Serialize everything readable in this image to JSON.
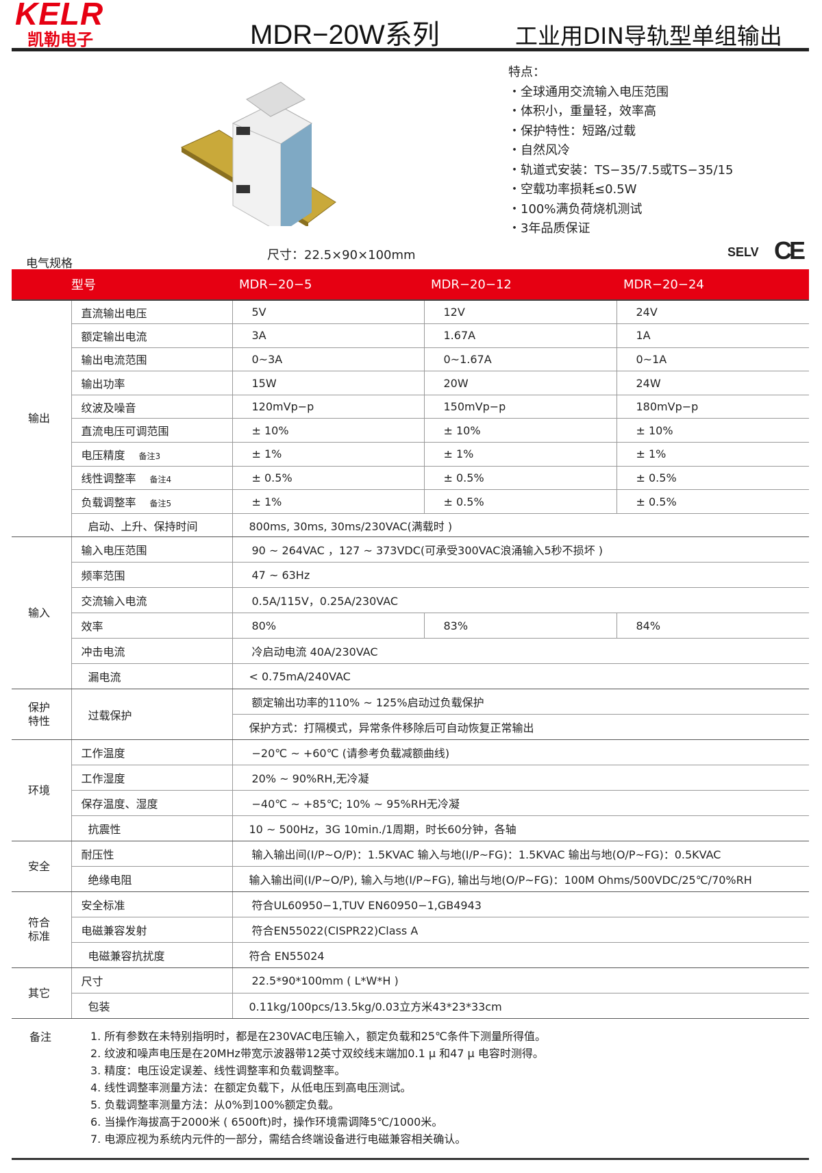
{
  "brand": {
    "logo_en": "KELR",
    "logo_cn": "凯勒电子",
    "primary": "#e60012"
  },
  "header": {
    "title": "MDR−20W系列",
    "subtitle": "工业用DIN导轨型单组输出"
  },
  "features": {
    "heading": "特点：",
    "items": [
      "全球通用交流输入电压范围",
      "体积小，重量轻，效率高",
      "保护特性：短路/过载",
      "自然风冷",
      "轨道式安装：TS−35/7.5或TS−35/15",
      "空载功率损耗≤0.5W",
      "100%满负荷烧机测试",
      "3年品质保证"
    ]
  },
  "dimensions": "尺寸：22.5×90×100mm",
  "section_label": "电气规格",
  "selv": "SELV",
  "ce": "CE",
  "table": {
    "header": [
      "型号",
      "MDR−20−5",
      "MDR−20−12",
      "MDR−20−24"
    ],
    "groups": [
      {
        "name": "输出",
        "rows": [
          {
            "label": "直流输出电压",
            "values": [
              "5V",
              "12V",
              "24V"
            ]
          },
          {
            "label": "额定输出电流",
            "values": [
              "3A",
              "1.67A",
              "1A"
            ]
          },
          {
            "label": "输出电流范围",
            "values": [
              "0~3A",
              "0~1.67A",
              "0~1A"
            ]
          },
          {
            "label": "输出功率",
            "values": [
              "15W",
              "20W",
              "24W"
            ]
          },
          {
            "label": "纹波及噪音",
            "values": [
              "120mVp−p",
              "150mVp−p",
              "180mVp−p"
            ]
          },
          {
            "label": "直流电压可调范围",
            "values": [
              "± 10%",
              "± 10%",
              "± 10%"
            ]
          },
          {
            "label": "电压精度",
            "note": "备注3",
            "values": [
              "± 1%",
              "± 1%",
              "± 1%"
            ]
          },
          {
            "label": "线性调整率",
            "note": "备注4",
            "values": [
              "± 0.5%",
              "± 0.5%",
              "± 0.5%"
            ]
          },
          {
            "label": "负载调整率",
            "note": "备注5",
            "values": [
              "± 1%",
              "± 0.5%",
              "± 0.5%"
            ]
          },
          {
            "label": "启动、上升、保持时间",
            "value": "800ms, 30ms, 30ms/230VAC(满载时 )"
          }
        ]
      },
      {
        "name": "输入",
        "rows": [
          {
            "label": "输入电压范围",
            "value": "90 ~ 264VAC  ，127 ~ 373VDC(可承受300VAC浪涌输入5秒不损坏 )"
          },
          {
            "label": "频率范围",
            "value": "47 ~ 63Hz"
          },
          {
            "label": "交流输入电流",
            "value": "0.5A/115V，0.25A/230VAC"
          },
          {
            "label": "效率",
            "values": [
              "80%",
              "83%",
              "84%"
            ]
          },
          {
            "label": "冲击电流",
            "value": "冷启动电流 40A/230VAC"
          },
          {
            "label": "漏电流",
            "value": "< 0.75mA/240VAC"
          }
        ]
      },
      {
        "name": "保护特性",
        "rows": [
          {
            "label": "过载保护",
            "values2": [
              "额定输出功率的110% ~ 125%启动过负载保护",
              "保护方式：打隔模式，异常条件移除后可自动恢复正常输出"
            ]
          }
        ]
      },
      {
        "name": "环境",
        "rows": [
          {
            "label": "工作温度",
            "value": "−20℃ ~ +60℃ (请参考负载减额曲线)"
          },
          {
            "label": "工作湿度",
            "value": "20% ~ 90%RH,无冷凝"
          },
          {
            "label": "保存温度、湿度",
            "value": "−40℃ ~ +85℃; 10% ~ 95%RH无冷凝"
          },
          {
            "label": "抗震性",
            "value": "10 ~ 500Hz，3G 10min./1周期，时长60分钟，各轴"
          }
        ]
      },
      {
        "name": "安全",
        "rows": [
          {
            "label": "耐压性",
            "value": "输入输出间(I/P~O/P)：1.5KVAC   输入与地(I/P~FG)：1.5KVAC   输出与地(O/P~FG)：0.5KVAC"
          },
          {
            "label": "绝缘电阻",
            "value": "输入输出间(I/P~O/P), 输入与地(I/P~FG), 输出与地(O/P~FG)：100M Ohms/500VDC/25℃/70%RH"
          }
        ]
      },
      {
        "name": "符合标准",
        "rows": [
          {
            "label": "安全标准",
            "value": "符合UL60950−1,TUV EN60950−1,GB4943"
          },
          {
            "label": "电磁兼容发射",
            "value": "符合EN55022(CISPR22)Class A"
          },
          {
            "label": "电磁兼容抗扰度",
            "value": "符合 EN55024"
          }
        ]
      },
      {
        "name": "其它",
        "rows": [
          {
            "label": "尺寸",
            "value": "22.5*90*100mm ( L*W*H )"
          },
          {
            "label": "包装",
            "value": "0.11kg/100pcs/13.5kg/0.03立方米43*23*33cm"
          }
        ]
      }
    ]
  },
  "notes": {
    "label": "备注",
    "items": [
      "1. 所有参数在未特别指明时，都是在230VAC电压输入，额定负载和25℃条件下测量所得值。",
      "2. 纹波和噪声电压是在20MHz带宽示波器带12英寸双绞线末端加0.1 μ 和47 μ 电容时测得。",
      "3. 精度：电压设定误差、线性调整率和负载调整率。",
      "4. 线性调整率测量方法：在额定负载下，从低电压到高电压测试。",
      "5. 负载调整率测量方法：从0%到100%额定负载。",
      "6. 当操作海拔高于2000米 ( 6500ft)时，操作环境需调降5℃/1000米。",
      "7. 电源应视为系统内元件的一部分，需结合终端设备进行电磁兼容相关确认。"
    ]
  }
}
